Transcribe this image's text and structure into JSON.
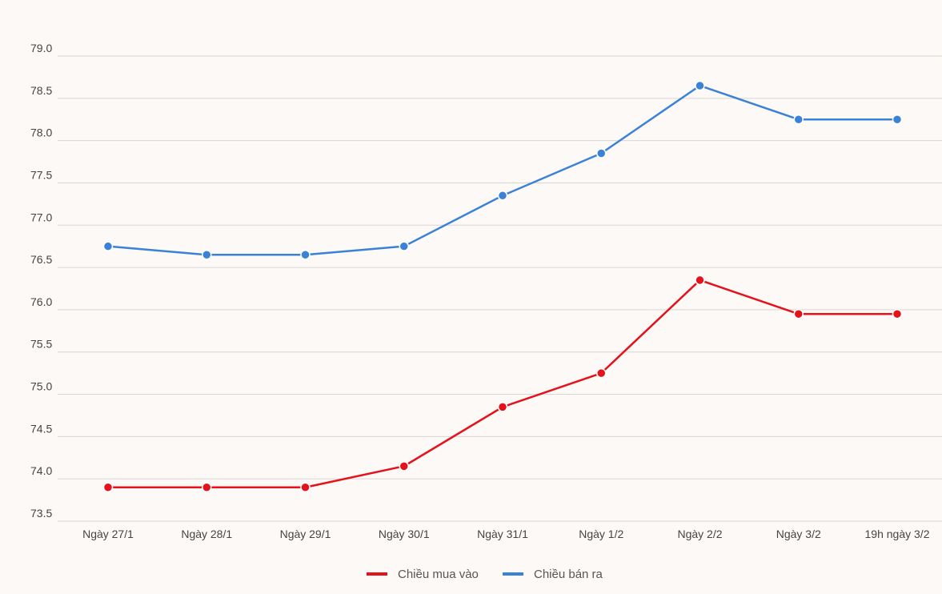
{
  "chart_data": {
    "type": "line",
    "title": "",
    "xlabel": "",
    "ylabel": "",
    "categories": [
      "Ngày 27/1",
      "Ngày 28/1",
      "Ngày 29/1",
      "Ngày 30/1",
      "Ngày 31/1",
      "Ngày 1/2",
      "Ngày 2/2",
      "Ngày 3/2",
      "19h ngày 3/2"
    ],
    "ylim": [
      73.5,
      79.0
    ],
    "yticks": [
      "73.5",
      "74.0",
      "74.5",
      "75.0",
      "75.5",
      "76.0",
      "76.5",
      "77.0",
      "77.5",
      "78.0",
      "78.5",
      "79.0"
    ],
    "grid": true,
    "legend_position": "bottom",
    "series": [
      {
        "name": "Chiều mua vào",
        "color": "#e3121b",
        "values": [
          73.9,
          73.9,
          73.9,
          74.15,
          74.85,
          75.25,
          76.35,
          75.95,
          75.95
        ]
      },
      {
        "name": "Chiều bán ra",
        "color": "#3a82d8",
        "values": [
          76.75,
          76.65,
          76.65,
          76.75,
          77.35,
          77.85,
          78.65,
          78.25,
          78.25
        ]
      }
    ]
  }
}
